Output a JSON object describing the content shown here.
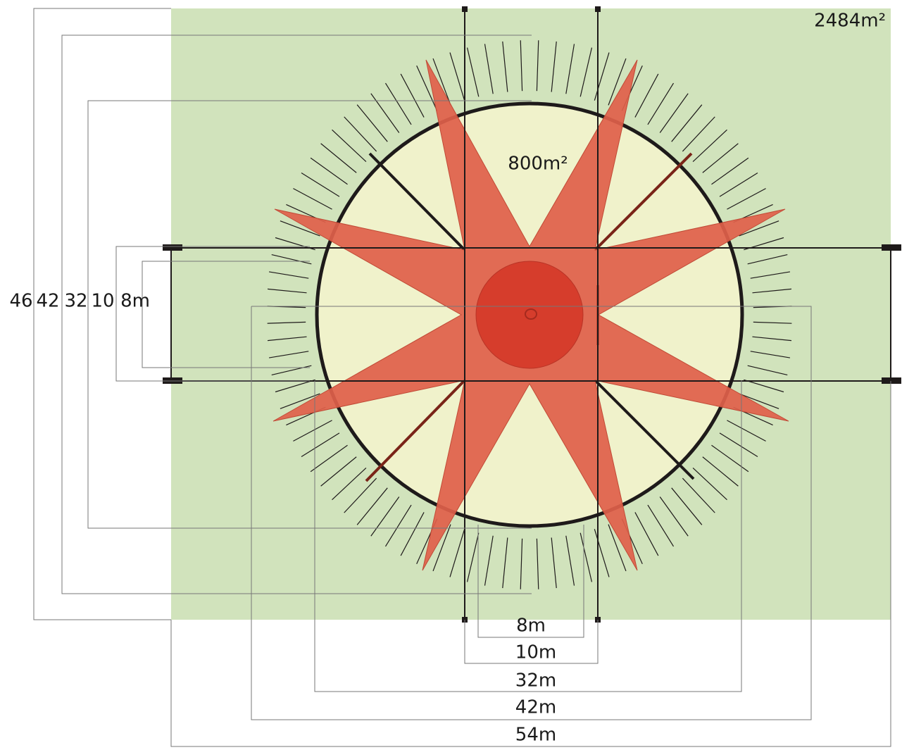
{
  "areas": {
    "site": "2484m²",
    "circle": "800m²"
  },
  "vertical_dimensions": [
    "46",
    "42",
    "32",
    "10",
    "8m"
  ],
  "horizontal_dimensions": [
    "8m",
    "10m",
    "32m",
    "42m",
    "54m"
  ]
}
